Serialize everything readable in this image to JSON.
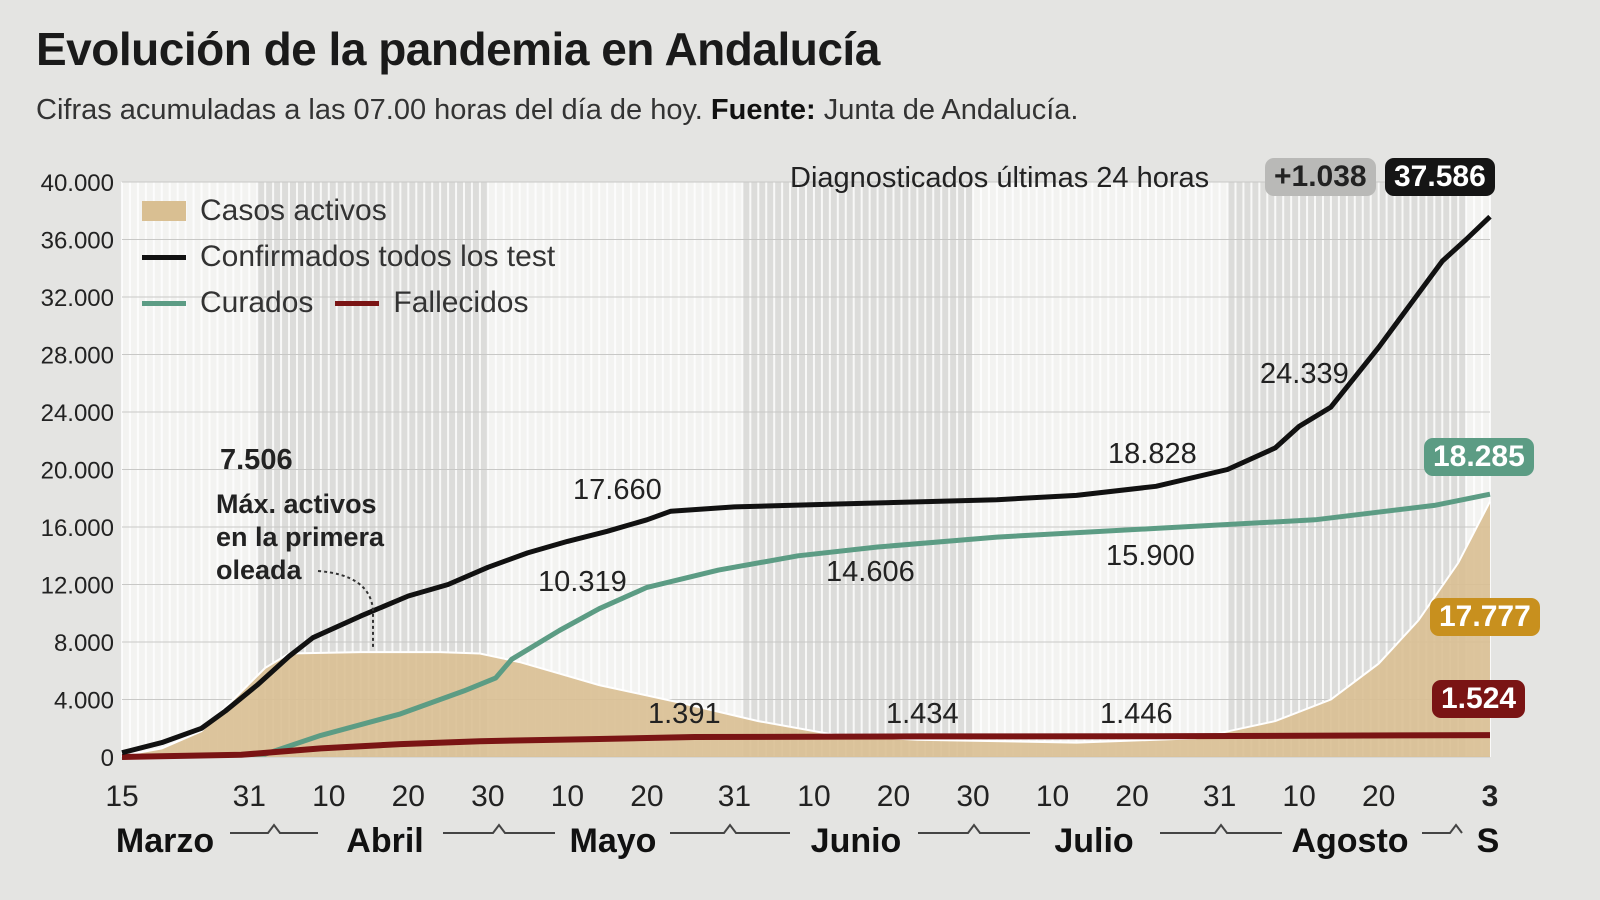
{
  "title": "Evolución de la pandemia en Andalucía",
  "subtitle": {
    "text": "Cifras acumuladas a las 07.00 horas del día de hoy.",
    "source_label": "Fuente:",
    "source": "Junta de Andalucía."
  },
  "header_right": {
    "label": "Diagnosticados últimas 24 horas",
    "delta": "+1.038",
    "total": "37.586"
  },
  "colors": {
    "confirmados": "#111111",
    "curados": "#5c9c84",
    "fallecidos": "#7a1414",
    "activos": "#d9bf92",
    "activos_badge": "#c8901e"
  },
  "chart_data": {
    "type": "line",
    "x_unit": "days since 15 March",
    "ylim": [
      0,
      40000
    ],
    "yticks": [
      "0",
      "4.000",
      "8.000",
      "12.000",
      "16.000",
      "20.000",
      "24.000",
      "28.000",
      "32.000",
      "36.000",
      "40.000"
    ],
    "xticks": [
      {
        "day": 0,
        "label": "15"
      },
      {
        "day": 16,
        "label": "31"
      },
      {
        "day": 26,
        "label": "10"
      },
      {
        "day": 36,
        "label": "20"
      },
      {
        "day": 46,
        "label": "30"
      },
      {
        "day": 56,
        "label": "10"
      },
      {
        "day": 66,
        "label": "20"
      },
      {
        "day": 77,
        "label": "31"
      },
      {
        "day": 87,
        "label": "10"
      },
      {
        "day": 97,
        "label": "20"
      },
      {
        "day": 107,
        "label": "30"
      },
      {
        "day": 117,
        "label": "10"
      },
      {
        "day": 127,
        "label": "20"
      },
      {
        "day": 138,
        "label": "31"
      },
      {
        "day": 148,
        "label": "10"
      },
      {
        "day": 158,
        "label": "20"
      },
      {
        "day": 172,
        "label": "3"
      }
    ],
    "months": [
      "Marzo",
      "Abril",
      "Mayo",
      "Junio",
      "Julio",
      "Agosto",
      "S"
    ],
    "legend": [
      "Casos activos",
      "Confirmados todos los test",
      "Curados",
      "Fallecidos"
    ],
    "series": [
      {
        "name": "Casos activos",
        "type": "area",
        "points": [
          [
            0,
            100
          ],
          [
            5,
            600
          ],
          [
            10,
            1800
          ],
          [
            14,
            4000
          ],
          [
            18,
            6200
          ],
          [
            21,
            7200
          ],
          [
            30,
            7300
          ],
          [
            40,
            7300
          ],
          [
            45,
            7200
          ],
          [
            50,
            6600
          ],
          [
            55,
            5800
          ],
          [
            60,
            5000
          ],
          [
            70,
            3800
          ],
          [
            80,
            2500
          ],
          [
            90,
            1500
          ],
          [
            100,
            1200
          ],
          [
            120,
            1000
          ],
          [
            135,
            1300
          ],
          [
            145,
            2500
          ],
          [
            152,
            4000
          ],
          [
            158,
            6500
          ],
          [
            163,
            9500
          ],
          [
            168,
            13500
          ],
          [
            172,
            17777
          ]
        ]
      },
      {
        "name": "Confirmados todos los test",
        "type": "line",
        "points": [
          [
            0,
            300
          ],
          [
            5,
            1000
          ],
          [
            10,
            2000
          ],
          [
            13,
            3200
          ],
          [
            17,
            5000
          ],
          [
            21,
            7000
          ],
          [
            24,
            8300
          ],
          [
            30,
            9800
          ],
          [
            36,
            11200
          ],
          [
            41,
            12000
          ],
          [
            46,
            13200
          ],
          [
            51,
            14200
          ],
          [
            56,
            15000
          ],
          [
            61,
            15700
          ],
          [
            66,
            16500
          ],
          [
            69,
            17100
          ],
          [
            77,
            17400
          ],
          [
            90,
            17600
          ],
          [
            110,
            17900
          ],
          [
            120,
            18200
          ],
          [
            130,
            18828
          ],
          [
            139,
            20000
          ],
          [
            145,
            21500
          ],
          [
            148,
            23000
          ],
          [
            152,
            24339
          ],
          [
            158,
            28500
          ],
          [
            162,
            31500
          ],
          [
            166,
            34500
          ],
          [
            169,
            36000
          ],
          [
            172,
            37586
          ]
        ]
      },
      {
        "name": "Curados",
        "type": "line",
        "points": [
          [
            0,
            0
          ],
          [
            18,
            200
          ],
          [
            25,
            1500
          ],
          [
            35,
            3000
          ],
          [
            43,
            4600
          ],
          [
            47,
            5500
          ],
          [
            49,
            6800
          ],
          [
            55,
            8800
          ],
          [
            60,
            10319
          ],
          [
            66,
            11800
          ],
          [
            75,
            13000
          ],
          [
            85,
            14000
          ],
          [
            95,
            14606
          ],
          [
            110,
            15300
          ],
          [
            130,
            15900
          ],
          [
            150,
            16500
          ],
          [
            165,
            17500
          ],
          [
            172,
            18285
          ]
        ]
      },
      {
        "name": "Fallecidos",
        "type": "line",
        "points": [
          [
            0,
            0
          ],
          [
            15,
            150
          ],
          [
            25,
            600
          ],
          [
            35,
            900
          ],
          [
            45,
            1100
          ],
          [
            60,
            1250
          ],
          [
            72,
            1391
          ],
          [
            100,
            1434
          ],
          [
            130,
            1446
          ],
          [
            172,
            1524
          ]
        ]
      }
    ],
    "annotations": [
      {
        "text": "7.506",
        "sub": [
          "Máx. activos",
          "en la primera",
          "oleada"
        ]
      },
      {
        "text": "17.660"
      },
      {
        "text": "18.828"
      },
      {
        "text": "24.339"
      },
      {
        "text": "10.319"
      },
      {
        "text": "14.606"
      },
      {
        "text": "15.900"
      },
      {
        "text": "1.391"
      },
      {
        "text": "1.434"
      },
      {
        "text": "1.446"
      }
    ],
    "end_labels": {
      "confirmados": "37.586",
      "curados": "18.285",
      "activos": "17.777",
      "fallecidos": "1.524"
    }
  }
}
